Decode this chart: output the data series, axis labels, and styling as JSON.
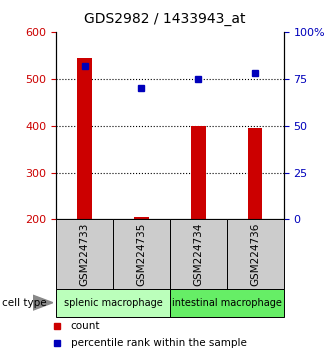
{
  "title": "GDS2982 / 1433943_at",
  "samples": [
    "GSM224733",
    "GSM224735",
    "GSM224734",
    "GSM224736"
  ],
  "counts": [
    545,
    205,
    400,
    395
  ],
  "percentiles": [
    82,
    70,
    75,
    78
  ],
  "ylim_left": [
    200,
    600
  ],
  "ylim_right": [
    0,
    100
  ],
  "yticks_left": [
    200,
    300,
    400,
    500,
    600
  ],
  "yticks_right": [
    0,
    25,
    50,
    75,
    100
  ],
  "ytick_labels_right": [
    "0",
    "25",
    "50",
    "75",
    "100%"
  ],
  "bar_color": "#cc0000",
  "marker_color": "#0000bb",
  "groups": [
    {
      "label": "splenic macrophage",
      "indices": [
        0,
        1
      ],
      "color": "#bbffbb"
    },
    {
      "label": "intestinal macrophage",
      "indices": [
        2,
        3
      ],
      "color": "#66ee66"
    }
  ],
  "sample_box_color": "#cccccc",
  "cell_type_label": "cell type",
  "legend_count_label": "count",
  "legend_percentile_label": "percentile rank within the sample",
  "bar_width": 0.25,
  "dotted_at_pct": [
    25,
    50,
    75
  ]
}
